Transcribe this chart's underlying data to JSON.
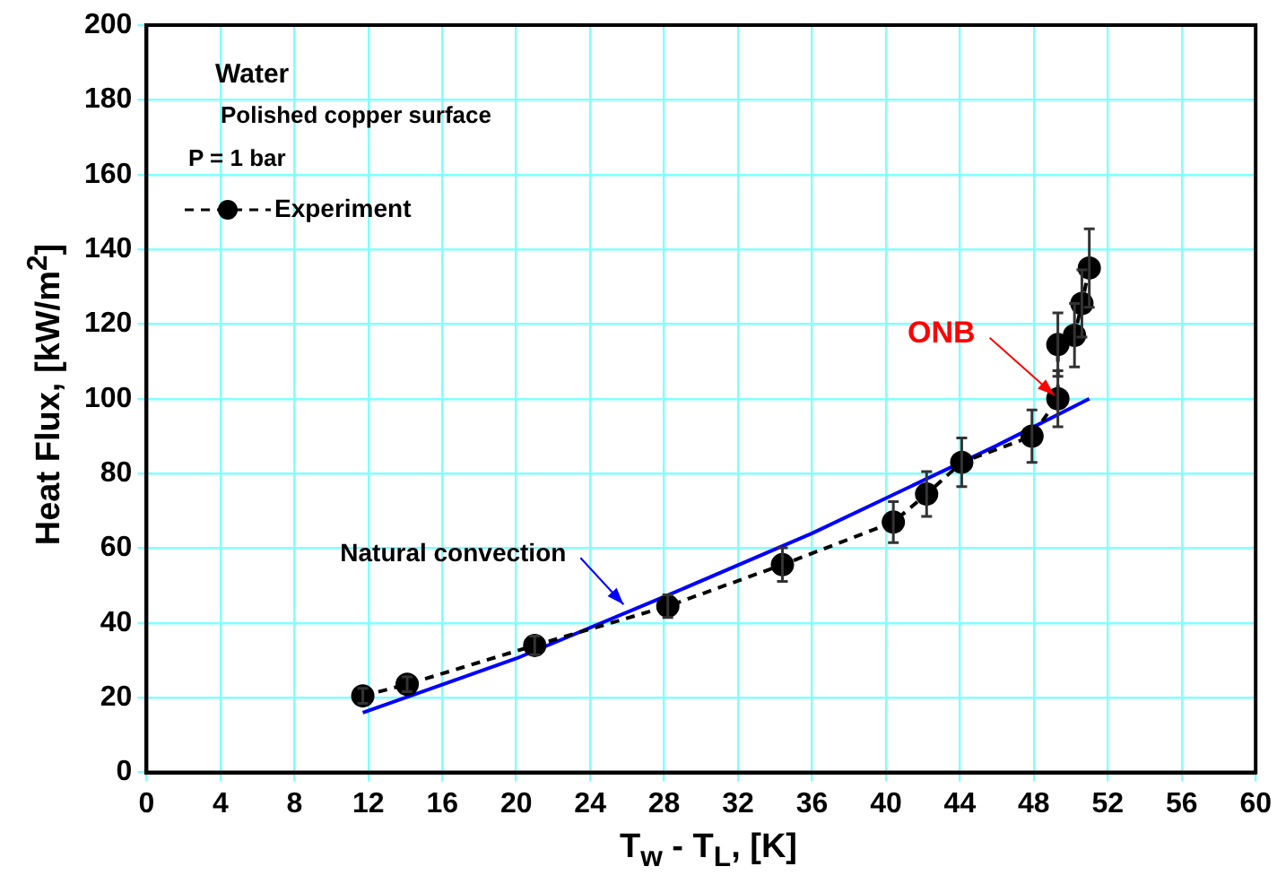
{
  "chart_data": {
    "type": "line",
    "xlabel": "T$_{w}$ - T$_{L}$, [K]",
    "ylabel": "Heat Flux, [kW/m$^{2}$]",
    "xlim": [
      0,
      60
    ],
    "xticks": [
      0,
      4,
      8,
      12,
      16,
      20,
      24,
      28,
      32,
      36,
      40,
      44,
      48,
      52,
      56,
      60
    ],
    "ylim": [
      0,
      200
    ],
    "yticks": [
      0,
      20,
      40,
      60,
      80,
      100,
      120,
      140,
      160,
      180,
      200
    ],
    "grid": true,
    "legend": "top left",
    "series": [
      {
        "name": "Experiment",
        "type": "line",
        "color": "#000000",
        "marker": "circle",
        "line_style": "dashed",
        "x": [
          11.7,
          14.1,
          21,
          28.2,
          34.4,
          40.4,
          42.2,
          44.1,
          47.9,
          49.3,
          49.3,
          50.2,
          50.6,
          51
        ],
        "values": [
          20.5,
          23.6,
          34,
          44.5,
          55.6,
          67,
          74.5,
          83,
          90,
          100,
          114.5,
          117,
          125.5,
          135
        ],
        "errors": [
          2,
          2,
          2.5,
          3,
          4.5,
          5.5,
          6,
          6.5,
          7,
          7.5,
          8.5,
          8.5,
          9,
          10.5
        ]
      },
      {
        "type": "line",
        "color": "#0000ff",
        "marker": "none",
        "line_style": "solid",
        "x": [
          11.7,
          20,
          28,
          36,
          46,
          51
        ],
        "values": [
          16,
          30.5,
          47,
          64,
          87.5,
          100
        ]
      }
    ],
    "annotations": [
      "Water",
      "Polished copper surface",
      "P = 1 bar",
      {
        "text": "ONB",
        "x": 49.3,
        "y": 100
      },
      {
        "text": "Natural convection",
        "x": 26,
        "y": 44
      }
    ]
  }
}
